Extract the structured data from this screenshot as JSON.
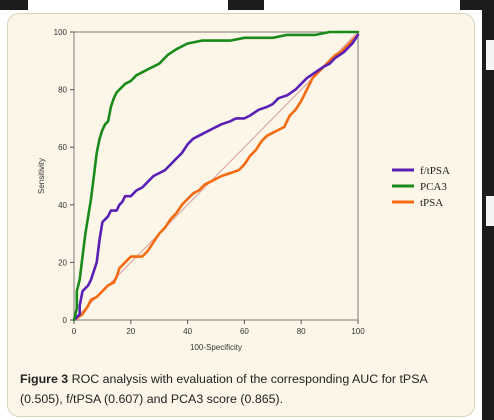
{
  "caption": {
    "label": "Figure 3",
    "text": "ROC analysis with evaluation of the corresponding AUC for tPSA (0.505), f/tPSA (0.607) and PCA3 score (0.865)."
  },
  "chart_data": {
    "type": "line",
    "title": "",
    "xlabel": "100-Specificity",
    "ylabel": "Sensitivity",
    "xlim": [
      0,
      100
    ],
    "ylim": [
      0,
      100
    ],
    "xticks": [
      0,
      20,
      40,
      60,
      80,
      100
    ],
    "yticks": [
      0,
      20,
      40,
      60,
      80,
      100
    ],
    "grid": "none",
    "legend_position": "right",
    "reference_line": {
      "x": [
        0,
        100
      ],
      "y": [
        0,
        100
      ],
      "color": "#d89a9a"
    },
    "series": [
      {
        "name": "f/tPSA",
        "color": "#5a1fb4",
        "x": [
          0,
          2,
          2,
          3,
          5,
          6,
          8,
          9,
          10,
          12,
          13,
          14,
          15,
          16,
          17,
          18,
          20,
          22,
          24,
          26,
          28,
          30,
          32,
          34,
          36,
          38,
          40,
          42,
          44,
          46,
          48,
          50,
          52,
          55,
          57,
          60,
          62,
          65,
          68,
          70,
          72,
          75,
          78,
          80,
          82,
          85,
          88,
          90,
          92,
          95,
          98,
          100
        ],
        "y": [
          0,
          2,
          5,
          10,
          12,
          14,
          20,
          28,
          34,
          36,
          38,
          38,
          38,
          40,
          41,
          43,
          43,
          45,
          46,
          48,
          50,
          51,
          52,
          54,
          56,
          58,
          61,
          63,
          64,
          65,
          66,
          67,
          68,
          69,
          70,
          70,
          71,
          73,
          74,
          75,
          77,
          78,
          80,
          82,
          84,
          86,
          88,
          89,
          91,
          93,
          96,
          99
        ]
      },
      {
        "name": "PCA3",
        "color": "#1a8a1a",
        "x": [
          0,
          1,
          1,
          2,
          3,
          4,
          5,
          6,
          7,
          8,
          9,
          10,
          11,
          12,
          13,
          14,
          15,
          16,
          17,
          18,
          20,
          22,
          24,
          26,
          28,
          30,
          33,
          36,
          38,
          40,
          45,
          50,
          55,
          60,
          65,
          70,
          75,
          80,
          85,
          90,
          95,
          100
        ],
        "y": [
          0,
          4,
          10,
          14,
          22,
          30,
          36,
          42,
          50,
          58,
          63,
          66,
          68,
          69,
          74,
          77,
          79,
          80,
          81,
          82,
          83,
          85,
          86,
          87,
          88,
          89,
          92,
          94,
          95,
          96,
          97,
          97,
          97,
          98,
          98,
          98,
          99,
          99,
          99,
          100,
          100,
          100
        ]
      },
      {
        "name": "tPSA",
        "color": "#f46a10",
        "x": [
          0,
          3,
          5,
          6,
          8,
          10,
          12,
          14,
          15,
          16,
          17,
          18,
          20,
          22,
          24,
          26,
          28,
          30,
          32,
          34,
          36,
          38,
          40,
          42,
          44,
          46,
          48,
          50,
          52,
          55,
          58,
          60,
          62,
          64,
          66,
          68,
          70,
          72,
          74,
          76,
          78,
          80,
          82,
          84,
          86,
          88,
          90,
          92,
          94,
          96,
          98,
          100
        ],
        "y": [
          0,
          2,
          5,
          7,
          8,
          10,
          12,
          13,
          15,
          18,
          19,
          20,
          22,
          22,
          22,
          24,
          27,
          30,
          32,
          35,
          37,
          40,
          42,
          44,
          45,
          47,
          48,
          49,
          50,
          51,
          52,
          54,
          57,
          59,
          62,
          64,
          65,
          66,
          67,
          71,
          73,
          76,
          80,
          84,
          86,
          88,
          90,
          92,
          93,
          95,
          97,
          99
        ]
      }
    ]
  }
}
